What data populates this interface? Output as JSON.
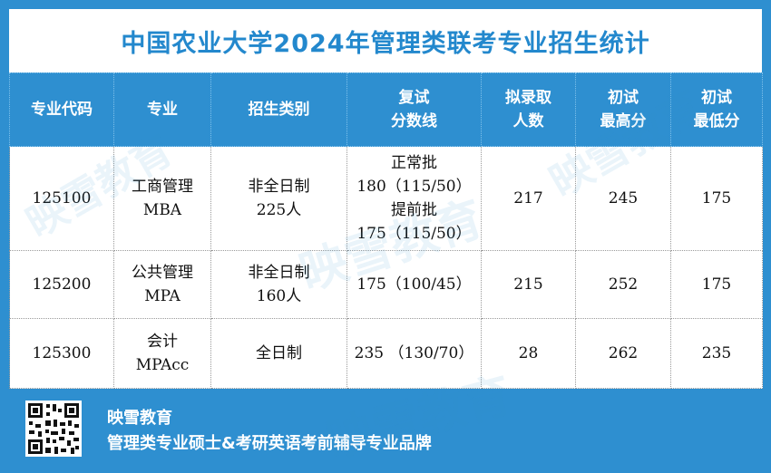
{
  "title": "中国农业大学2024年管理类联考专业招生统计",
  "headers": [
    "专业代码",
    "专业",
    "招生类别",
    "复试\n分数线",
    "拟录取\n人数",
    "初试\n最高分",
    "初试\n最低分"
  ],
  "rows": [
    {
      "code": "125100",
      "major": "工商管理\nMBA",
      "category": "非全日制\n225人",
      "retest_line": "正常批\n180（115/50）\n提前批\n175（115/50）",
      "admitted": "217",
      "max_score": "245",
      "min_score": "175"
    },
    {
      "code": "125200",
      "major": "公共管理\nMPA",
      "category": "非全日制\n160人",
      "retest_line": "175（100/45）",
      "admitted": "215",
      "max_score": "252",
      "min_score": "175"
    },
    {
      "code": "125300",
      "major": "会计\nMPAcc",
      "category": "全日制",
      "retest_line": "235 （130/70）",
      "admitted": "28",
      "max_score": "262",
      "min_score": "235"
    }
  ],
  "footer": {
    "brand": "映雪教育",
    "slogan": "管理类专业硕士&考研英语考前辅导专业品牌"
  },
  "watermark": "映雪教育",
  "colors": {
    "frame": "#2e8fd0",
    "title": "#2388cd"
  },
  "icons": {
    "qr": "qr-code-icon"
  }
}
